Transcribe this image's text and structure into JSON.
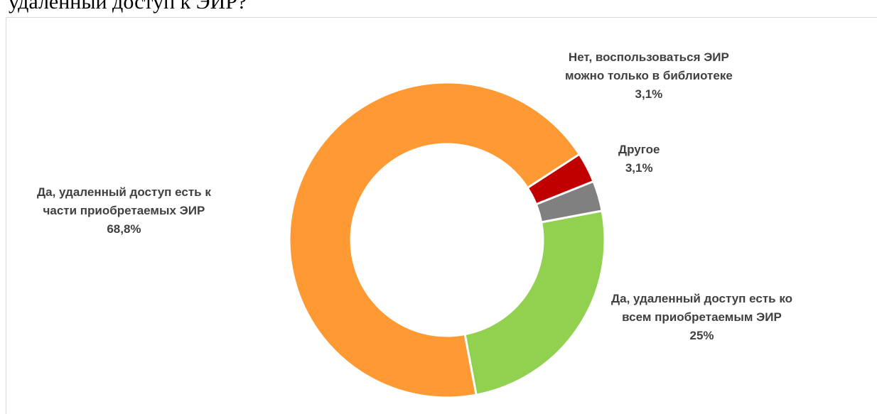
{
  "caption": "удаленный доступ к ЭИР?",
  "chart_data": {
    "type": "pie",
    "style": "donut",
    "legend": "none",
    "slices": [
      {
        "name_lines": [
          "Нет, воспользоваться ЭИР",
          "можно только в библиотеке"
        ],
        "value": 3.1,
        "value_label": "3,1%",
        "color": "#c00000"
      },
      {
        "name_lines": [
          "Другое"
        ],
        "value": 3.1,
        "value_label": "3,1%",
        "color": "#808080"
      },
      {
        "name_lines": [
          "Да, удаленный доступ есть ко",
          "всем приобретаемым ЭИР"
        ],
        "value": 25,
        "value_label": "25%",
        "color": "#92d050"
      },
      {
        "name_lines": [
          "Да, удаленный доступ есть к",
          "части приобретаемых ЭИР"
        ],
        "value": 68.8,
        "value_label": "68,8%",
        "color": "#ff9933"
      }
    ]
  }
}
